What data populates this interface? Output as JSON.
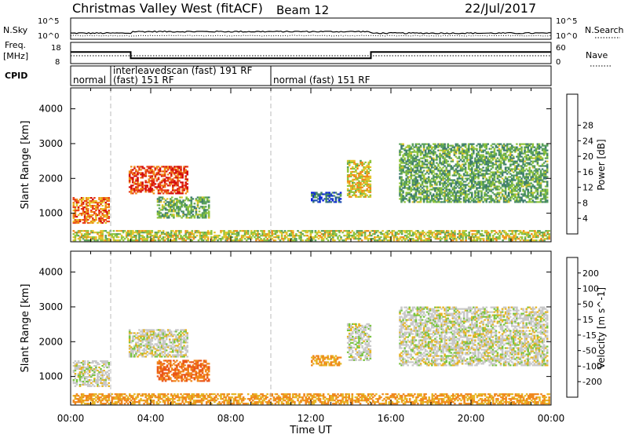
{
  "header": {
    "title": "Christmas Valley West (fitACF)",
    "beam": "Beam 12",
    "date": "22/Jul/2017"
  },
  "strip_labels": {
    "nsky": "N.Sky",
    "nsky_ticks": [
      "10^5",
      "10^0"
    ],
    "nsearch": "N.Search",
    "nsearch_ticks": [
      "10^5",
      "10^0"
    ],
    "freq_line1": "Freq.",
    "freq_line2": "[MHz]",
    "freq_ticks": [
      "18",
      "8"
    ],
    "nave": "Nave",
    "nave_ticks": [
      "60",
      "0"
    ],
    "cpid": "CPID"
  },
  "cpid_segments": [
    {
      "label": "normal",
      "start_h": 0.0,
      "end_h": 2.0,
      "row": 1
    },
    {
      "label": "interleavedscan (fast) 191 RF",
      "start_h": 2.0,
      "end_h": 10.0,
      "row": 0
    },
    {
      "label": "(fast) 151 RF",
      "start_h": 2.0,
      "end_h": 10.0,
      "row": 1
    },
    {
      "label": "normal (fast) 151 RF",
      "start_h": 10.0,
      "end_h": 24.0,
      "row": 1
    }
  ],
  "freq_series": {
    "x_h": [
      0,
      3,
      3,
      15,
      15,
      24
    ],
    "y_mhz": [
      13.5,
      13.5,
      10.5,
      10.5,
      13.5,
      13.5
    ]
  },
  "chart_data": [
    {
      "type": "heatmap",
      "panel": "power",
      "xlabel": "",
      "ylabel": "Slant Range [km]",
      "xlim_h": [
        0,
        24
      ],
      "ylim_km": [
        180,
        4600
      ],
      "yticks": [
        "1000",
        "2000",
        "3000",
        "4000"
      ],
      "colorbar_label": "Power [dB]",
      "colorbar_ticks": [
        "4",
        "8",
        "12",
        "16",
        "20",
        "24",
        "28"
      ],
      "colorbar_colors": [
        "#0b1fe0",
        "#1f4fb0",
        "#3e7c6e",
        "#58a05a",
        "#8fc43c",
        "#e4c42a",
        "#f08a18",
        "#e8421a",
        "#d40d0d"
      ],
      "regions": [
        {
          "x0": 0.1,
          "x1": 1.9,
          "y0": 700,
          "y1": 1450,
          "level": 0.75
        },
        {
          "x0": 2.9,
          "x1": 5.8,
          "y0": 1550,
          "y1": 2350,
          "level": 0.85
        },
        {
          "x0": 4.3,
          "x1": 6.9,
          "y0": 850,
          "y1": 1450,
          "level": 0.4
        },
        {
          "x0": 12.0,
          "x1": 13.5,
          "y0": 1300,
          "y1": 1600,
          "level": 0.2
        },
        {
          "x0": 13.8,
          "x1": 15.0,
          "y0": 1450,
          "y1": 2500,
          "level": 0.6
        },
        {
          "x0": 16.4,
          "x1": 23.8,
          "y0": 1300,
          "y1": 3000,
          "level": 0.4
        },
        {
          "x0": 0.1,
          "x1": 23.9,
          "y0": 200,
          "y1": 500,
          "level": 0.55
        }
      ]
    },
    {
      "type": "heatmap",
      "panel": "velocity",
      "xlabel": "Time UT",
      "ylabel": "Slant Range [km]",
      "xlim_h": [
        0,
        24
      ],
      "ylim_km": [
        180,
        4600
      ],
      "xticks": [
        "00:00",
        "04:00",
        "08:00",
        "12:00",
        "16:00",
        "20:00",
        "00:00"
      ],
      "yticks": [
        "1000",
        "2000",
        "3000",
        "4000"
      ],
      "colorbar_label": "Velocity [m s^-1]",
      "colorbar_ticks": [
        "200",
        "100",
        "50",
        "15",
        "-15",
        "-50",
        "-100",
        "-200"
      ],
      "colorbar_colors": [
        "#2233b8",
        "#2f63c8",
        "#3d8a60",
        "#79c440",
        "#c8c8c8",
        "#e6b422",
        "#f0861a",
        "#ea5418",
        "#da1414"
      ],
      "regions": [
        {
          "x0": 0.1,
          "x1": 1.9,
          "y0": 700,
          "y1": 1450,
          "level": 0.5
        },
        {
          "x0": 2.9,
          "x1": 5.8,
          "y0": 1550,
          "y1": 2350,
          "level": 0.5
        },
        {
          "x0": 4.3,
          "x1": 6.9,
          "y0": 850,
          "y1": 1450,
          "level": 0.78
        },
        {
          "x0": 12.0,
          "x1": 13.5,
          "y0": 1300,
          "y1": 1600,
          "level": 0.68
        },
        {
          "x0": 13.8,
          "x1": 15.0,
          "y0": 1450,
          "y1": 2500,
          "level": 0.5
        },
        {
          "x0": 16.4,
          "x1": 23.8,
          "y0": 1300,
          "y1": 3000,
          "level": 0.5
        },
        {
          "x0": 0.1,
          "x1": 23.9,
          "y0": 200,
          "y1": 500,
          "level": 0.68
        }
      ]
    }
  ]
}
